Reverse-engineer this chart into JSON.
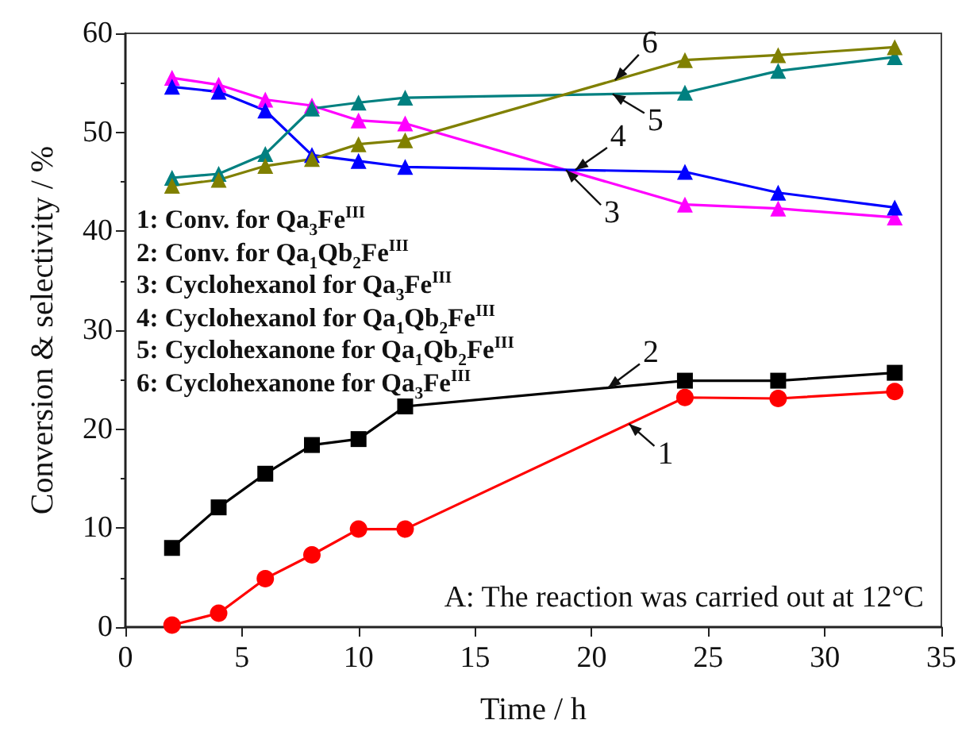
{
  "chart_data": {
    "type": "line",
    "xlabel": "Time / h",
    "ylabel": "Conversion & selectivity / %",
    "x": [
      2,
      4,
      6,
      8,
      10,
      12,
      24,
      28,
      33
    ],
    "xlim": [
      0,
      35
    ],
    "xticks": [
      0,
      5,
      10,
      15,
      20,
      25,
      30,
      35
    ],
    "ylim": [
      0,
      60
    ],
    "yticks": [
      0,
      10,
      20,
      30,
      40,
      50,
      60
    ],
    "grid": false,
    "legend": false,
    "series": [
      {
        "name": "1",
        "color": "#ff0000",
        "marker": "circle",
        "values": [
          0.2,
          1.4,
          4.9,
          7.3,
          9.9,
          9.9,
          23.2,
          23.1,
          23.8
        ]
      },
      {
        "name": "2",
        "color": "#000000",
        "marker": "square",
        "values": [
          8.0,
          12.1,
          15.5,
          18.4,
          19.0,
          22.3,
          24.9,
          24.9,
          25.7
        ]
      },
      {
        "name": "3",
        "color": "#ff00ff",
        "marker": "triangle",
        "values": [
          55.5,
          54.8,
          53.3,
          52.7,
          51.2,
          50.9,
          42.7,
          42.3,
          41.4
        ]
      },
      {
        "name": "4",
        "color": "#0000ff",
        "marker": "triangle",
        "values": [
          54.6,
          54.1,
          52.2,
          47.7,
          47.1,
          46.5,
          46.0,
          43.9,
          42.4
        ]
      },
      {
        "name": "5",
        "color": "#008080",
        "marker": "triangle",
        "values": [
          45.4,
          45.8,
          47.8,
          52.4,
          53.0,
          53.5,
          54.0,
          56.2,
          57.6
        ]
      },
      {
        "name": "6",
        "color": "#808000",
        "marker": "triangle",
        "values": [
          44.6,
          45.2,
          46.6,
          47.3,
          48.8,
          49.2,
          57.3,
          57.8,
          58.6
        ]
      }
    ],
    "annotations": [
      "1: Conv. for Qa$_{3}$Fe$^{III}$",
      "2: Conv. for Qa$_{1}$Qb$_{2}$Fe$^{III}$",
      "3: Cyclohexanol for Qa$_{3}$Fe$^{III}$",
      "4: Cyclohexanol for Qa$_{1}$Qb$_{2}$Fe$^{III}$",
      "5: Cyclohexanone for Qa$_{1}$Qb$_{2}$Fe$^{III}$",
      "6: Cyclohexanone for Qa$_{3}$Fe$^{III}$",
      "A: The reaction was carried out at 12°C"
    ]
  }
}
